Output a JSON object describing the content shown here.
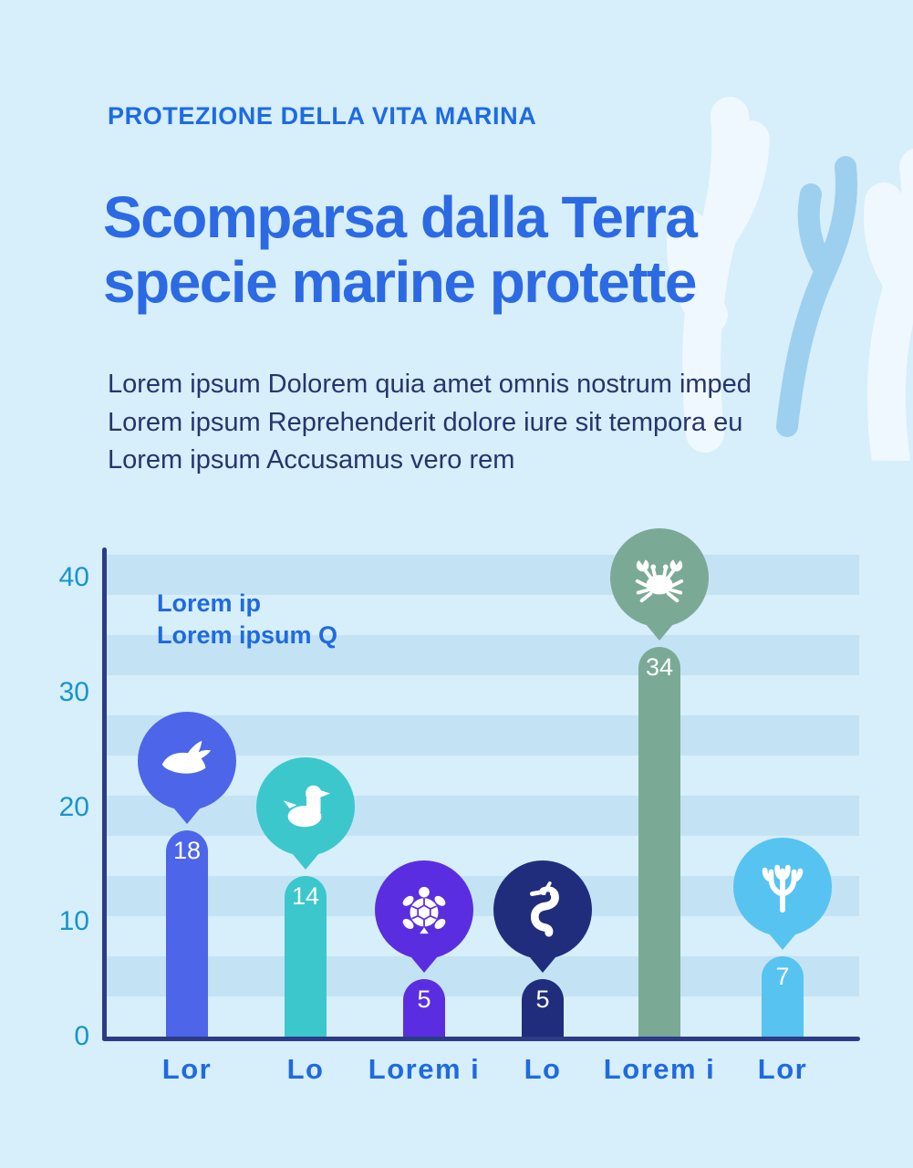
{
  "page": {
    "background": "#d7eefb",
    "kicker": "PROTEZIONE DELLA VITA MARINA",
    "title": {
      "line1": "Scomparsa dalla Terra",
      "line2": "specie marine protette"
    },
    "body_lines": [
      "Lorem ipsum Dolorem quia amet omnis nostrum imped",
      "Lorem ipsum Reprehenderit dolore iure sit tempora eu",
      "Lorem ipsum Accusamus vero rem"
    ],
    "colors": {
      "accent_blue": "#1f6ae0",
      "title_blue": "#2c6ae4",
      "body_text": "#26356d",
      "tick_teal": "#1795c9",
      "axis_navy": "#2c3b86",
      "stripe_band": "#c3e3f4",
      "decor_white": "#eff8fe",
      "decor_blue": "#9dcfee"
    },
    "decorations": [
      "coral-silhouette-white",
      "coral-silhouette-blue",
      "coral-silhouette-white"
    ]
  },
  "chart_data": {
    "type": "bar",
    "title": "",
    "xlabel": "",
    "ylabel": "",
    "legend_lines": [
      "Lorem ip",
      "Lorem ipsum Q"
    ],
    "legend_position": "top-left inside plot",
    "categories": [
      "Lor",
      "Lo",
      "Lorem i",
      "Lo",
      "Lorem i",
      "Lor"
    ],
    "values": [
      18,
      14,
      5,
      5,
      34,
      7
    ],
    "bar_colors": [
      "#4d65e9",
      "#3cc7cd",
      "#5a2ee0",
      "#202d7d",
      "#7aaa95",
      "#57c3f1"
    ],
    "icons": [
      "whale-icon",
      "duck-icon",
      "turtle-icon",
      "seahorse-icon",
      "crab-icon",
      "coral-icon"
    ],
    "y_ticks": [
      40,
      30,
      20,
      10,
      0
    ],
    "ylim": [
      0,
      42
    ],
    "grid": "horizontal striped bands"
  }
}
